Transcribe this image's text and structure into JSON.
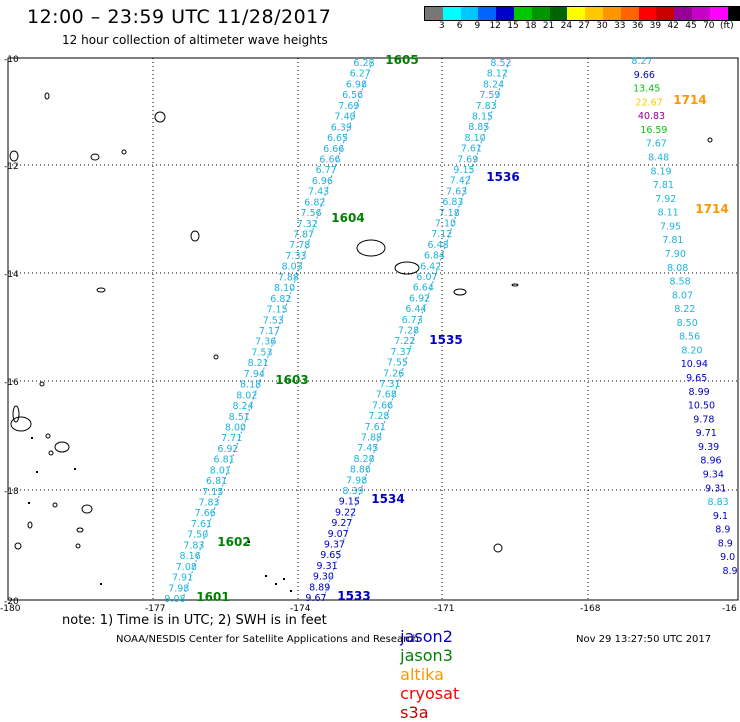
{
  "header": {
    "title": "12:00 – 23:59 UTC 11/28/2017",
    "subtitle": "12 hour collection of altimeter wave heights"
  },
  "legend": {
    "unit": "(ft)",
    "colors": [
      "#777777",
      "#00ffff",
      "#00c8ff",
      "#0064ff",
      "#0000c8",
      "#00c800",
      "#009600",
      "#006400",
      "#ffff00",
      "#ffc800",
      "#ff9600",
      "#ff6400",
      "#ff0000",
      "#c80000",
      "#960096",
      "#c800c8",
      "#ff00ff",
      "#000000"
    ],
    "ticks": [
      "3",
      "6",
      "9",
      "12",
      "15",
      "18",
      "21",
      "24",
      "27",
      "30",
      "33",
      "36",
      "39",
      "42",
      "45",
      "70"
    ]
  },
  "axes": {
    "lat_labels": [
      "-10",
      "-12",
      "-14",
      "-16",
      "-18",
      "-20"
    ],
    "lon_labels": [
      "-180",
      "-177",
      "-174",
      "-171",
      "-168",
      "-16"
    ]
  },
  "colors": {
    "jason2": "#0000c8",
    "jason3": "#008000",
    "altika": "#ff9600",
    "cryosat": "#ff0000",
    "s3a": "#c80000",
    "cyan_values": "#1eb4dc",
    "track_line": "#3c9bdc"
  },
  "passes": [
    {
      "id": "1605",
      "sat": "jason3"
    },
    {
      "id": "1604",
      "sat": "jason3"
    },
    {
      "id": "1603",
      "sat": "jason3"
    },
    {
      "id": "1602",
      "sat": "jason3"
    },
    {
      "id": "1601",
      "sat": "jason3"
    },
    {
      "id": "1536",
      "sat": "jason2"
    },
    {
      "id": "1535",
      "sat": "jason2"
    },
    {
      "id": "1534",
      "sat": "jason2"
    },
    {
      "id": "1533",
      "sat": "jason2"
    },
    {
      "id": "1714",
      "sat": "altika"
    },
    {
      "id": "1714",
      "sat": "altika"
    }
  ],
  "tracks": {
    "jason3_values": [
      "6.28",
      "6.27",
      "6.98",
      "6.56",
      "7.69",
      "7.40",
      "6.39",
      "6.65",
      "6.66",
      "6.66",
      "6.77",
      "6.96",
      "7.43",
      "6.82",
      "7.56",
      "7.32",
      "7.87",
      "7.78",
      "7.33",
      "8.03",
      "7.88",
      "8.10",
      "6.82",
      "7.15",
      "7.53",
      "7.17",
      "7.36",
      "7.53",
      "8.21",
      "7.94",
      "8.18",
      "8.02",
      "8.24",
      "8.51",
      "8.00",
      "7.71",
      "6.92",
      "6.81",
      "8.01",
      "6.81",
      "7.15",
      "7.83",
      "7.66",
      "7.61",
      "7.50",
      "7.83",
      "8.16",
      "7.08",
      "7.91",
      "7.98",
      "9.08"
    ],
    "jason2_values": [
      "8.52",
      "8.12",
      "8.24",
      "7.59",
      "7.83",
      "8.15",
      "8.85",
      "8.10",
      "7.61",
      "7.69",
      "9.15",
      "7.42",
      "7.63",
      "6.83",
      "7.18",
      "7.10",
      "7.12",
      "6.48",
      "6.84",
      "6.42",
      "6.07",
      "6.64",
      "6.92",
      "6.44",
      "6.73",
      "7.28",
      "7.22",
      "7.37",
      "7.55",
      "7.26",
      "7.31",
      "7.68",
      "7.66",
      "7.28",
      "7.61",
      "7.88",
      "7.45",
      "8.28",
      "8.86",
      "7.98",
      "8.39",
      "9.15",
      "9.22",
      "9.27",
      "9.07",
      "9.37",
      "9.65",
      "9.31",
      "9.30",
      "8.89",
      "9.67"
    ],
    "east_values": [
      "8.27",
      "9.66",
      "13.45",
      "22.67",
      "40.83",
      "16.59",
      "7.67",
      "8.48",
      "8.19",
      "7.81",
      "7.92",
      "8.11",
      "7.95",
      "7.81",
      "7.90",
      "8.08",
      "8.58",
      "8.07",
      "8.22",
      "8.50",
      "8.56",
      "8.20",
      "10.94",
      "9.65",
      "8.99",
      "10.50",
      "9.78",
      "9.71",
      "9.39",
      "8.96",
      "9.34",
      "9.31",
      "8.83",
      "9.1",
      "8.9",
      "8.9",
      "9.0",
      "8.9"
    ]
  },
  "footer": {
    "note": "note:  1) Time is in UTC;  2) SWH is in feet",
    "satellites": [
      "jason2",
      "jason3",
      "altika",
      "cryosat",
      "s3a"
    ],
    "credit": "NOAA/NESDIS Center for Satellite Applications and Research",
    "timestamp": "Nov 29 13:27:50 UTC 2017"
  }
}
